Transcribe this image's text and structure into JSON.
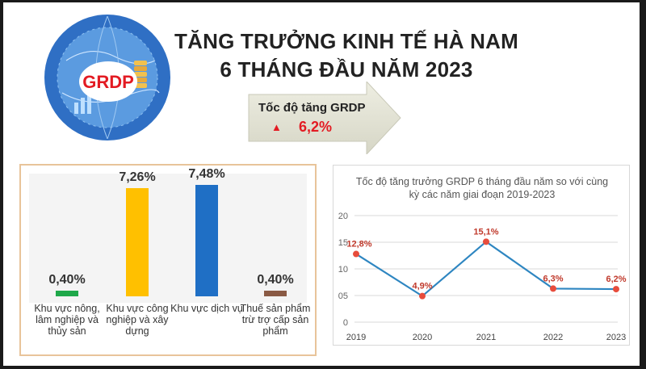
{
  "header": {
    "title_line1": "TĂNG TRƯỞNG KINH TẾ HÀ NAM",
    "title_line2": "6 THÁNG ĐẦU NĂM 2023"
  },
  "logo": {
    "text": "GRDP",
    "icon": "grdp-globe-logo"
  },
  "callout": {
    "label": "Tốc độ tăng GRDP",
    "triangle": "▲",
    "value": "6,2%",
    "colors": {
      "value": "#e31b23",
      "arrow": "#dfdfcf"
    }
  },
  "chart_data": [
    {
      "type": "bar",
      "categories": [
        "Khu vực nông, lâm nghiệp và thủy sản",
        "Khu vực công nghiệp và xây dựng",
        "Khu vực dịch vụ",
        "Thuế sản phẩm trừ trợ cấp sản phẩm"
      ],
      "values": [
        0.4,
        7.26,
        7.48,
        0.4
      ],
      "value_labels": [
        "0,40%",
        "7,26%",
        "7,48%",
        "0,40%"
      ],
      "colors": [
        "#1fa84a",
        "#ffc000",
        "#1f6fc5",
        "#8a5a44"
      ],
      "ylim": [
        0,
        7.48
      ]
    },
    {
      "type": "line",
      "title": "Tốc độ tăng trưởng GRDP 6 tháng đầu năm so với cùng kỳ các năm giai đoạn 2019-2023",
      "x": [
        "2019",
        "2020",
        "2021",
        "2022",
        "2023"
      ],
      "values": [
        12.8,
        4.9,
        15.1,
        6.3,
        6.2
      ],
      "value_labels": [
        "12,8%",
        "4,9%",
        "15,1%",
        "6,3%",
        "6,2%"
      ],
      "yticks": [
        "0",
        "05",
        "10",
        "15",
        "20"
      ],
      "ytick_values": [
        0,
        5,
        10,
        15,
        20
      ],
      "ylim": [
        0,
        20
      ],
      "grid": true,
      "colors": {
        "line": "#2e86c1",
        "marker": "#e74c3c",
        "label": "#c0392b"
      }
    }
  ]
}
